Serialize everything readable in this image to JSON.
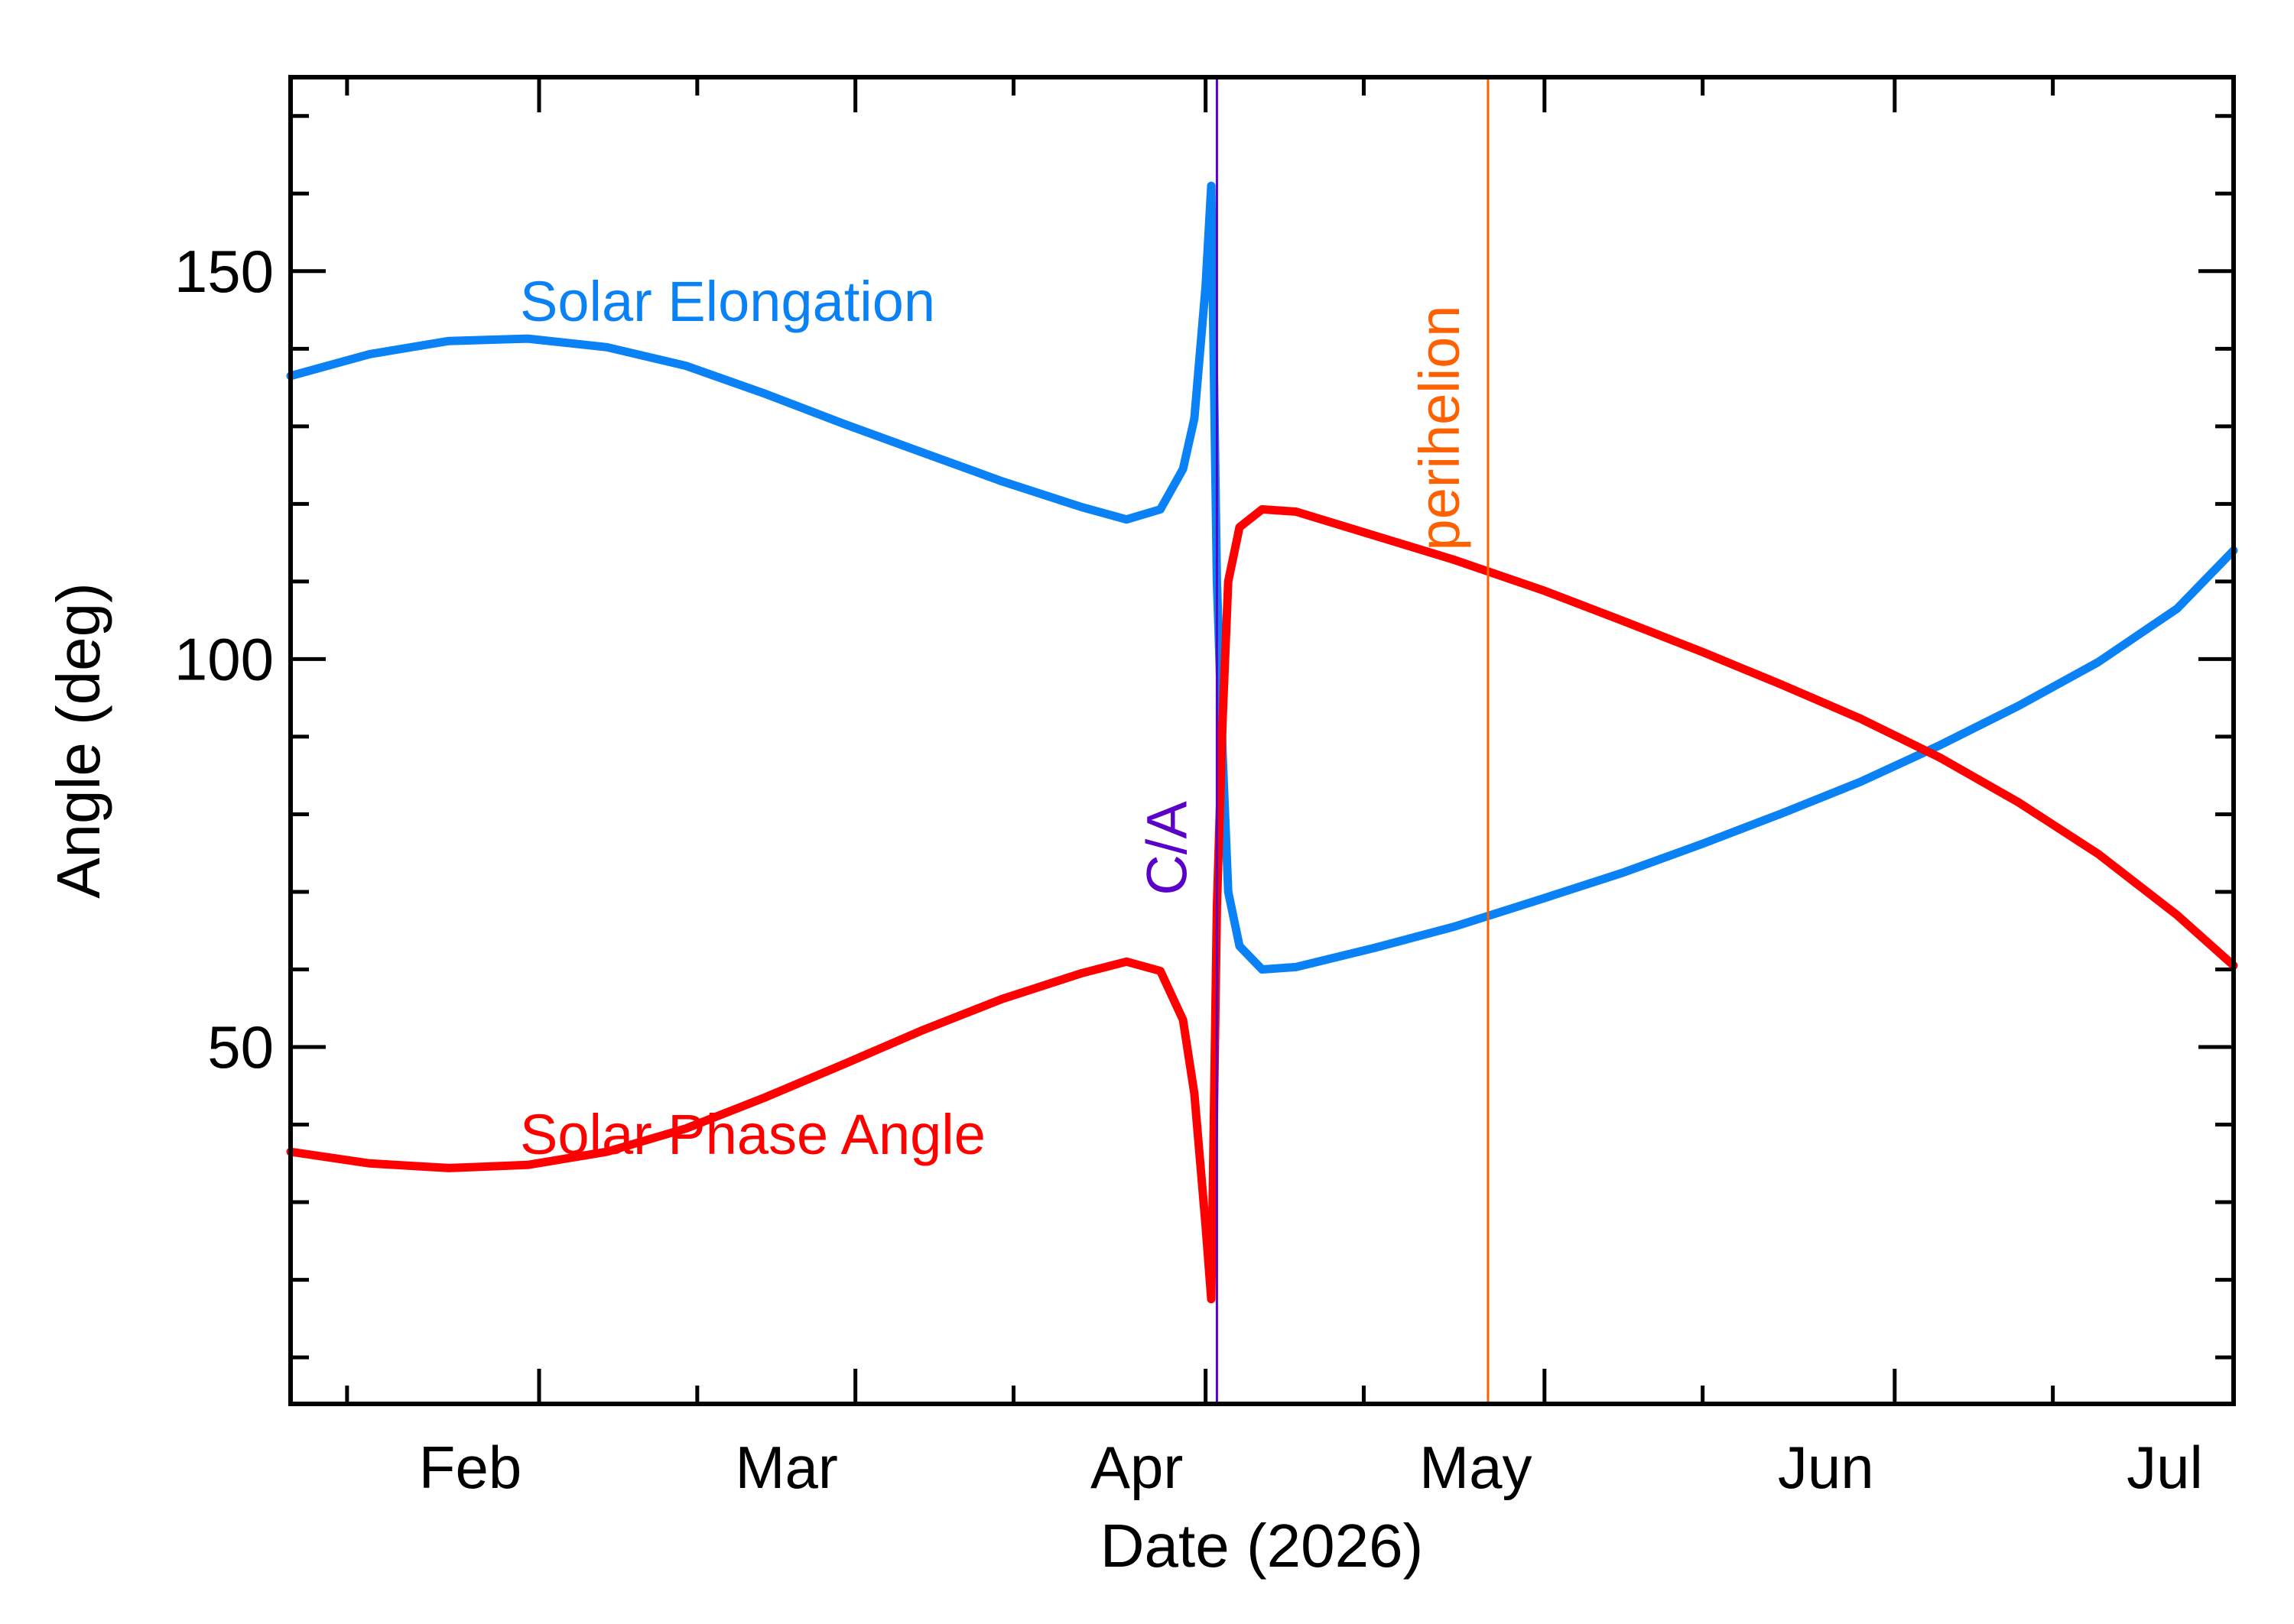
{
  "chart_data": {
    "type": "line",
    "title": "",
    "xlabel": "Date (2026)",
    "ylabel": "Angle (deg)",
    "x_range": [
      "2026-01-10",
      "2026-07-01"
    ],
    "ylim": [
      4,
      175
    ],
    "grid": false,
    "x_ticks": [
      {
        "date": "2026-02-01",
        "label": "Feb"
      },
      {
        "date": "2026-03-01",
        "label": "Mar"
      },
      {
        "date": "2026-04-01",
        "label": "Apr"
      },
      {
        "date": "2026-05-01",
        "label": "May"
      },
      {
        "date": "2026-06-01",
        "label": "Jun"
      },
      {
        "date": "2026-07-01",
        "label": "Jul"
      }
    ],
    "x_minor_ticks": [
      "2026-01-15",
      "2026-02-15",
      "2026-03-15",
      "2026-04-15",
      "2026-05-15",
      "2026-06-15"
    ],
    "y_ticks": [
      {
        "value": 50,
        "label": "50"
      },
      {
        "value": 100,
        "label": "100"
      },
      {
        "value": 150,
        "label": "150"
      }
    ],
    "y_minor_ticks": [
      10,
      20,
      30,
      40,
      60,
      70,
      80,
      90,
      110,
      120,
      130,
      140,
      160,
      170
    ],
    "vlines": [
      {
        "date": "2026-04-02",
        "label": "C/A",
        "color": "#5a00c8"
      },
      {
        "date": "2026-04-26",
        "label": "perihelion",
        "color": "#ff6000"
      }
    ],
    "series": [
      {
        "name": "Solar Elongation",
        "color": "#0a82f5",
        "points": [
          [
            "2026-01-10",
            136.5
          ],
          [
            "2026-01-17",
            139.3
          ],
          [
            "2026-01-24",
            141.0
          ],
          [
            "2026-01-31",
            141.3
          ],
          [
            "2026-02-07",
            140.2
          ],
          [
            "2026-02-14",
            137.8
          ],
          [
            "2026-02-21",
            134.2
          ],
          [
            "2026-02-28",
            130.3
          ],
          [
            "2026-03-07",
            126.6
          ],
          [
            "2026-03-14",
            122.9
          ],
          [
            "2026-03-21",
            119.6
          ],
          [
            "2026-03-25",
            118.0
          ],
          [
            "2026-03-28",
            119.3
          ],
          [
            "2026-03-30",
            124.5
          ],
          [
            "2026-03-31",
            131.0
          ],
          [
            "2026-04-01",
            148.0
          ],
          [
            "2026-04-01T12",
            161.0
          ],
          [
            "2026-04-02",
            110.0
          ],
          [
            "2026-04-02T12",
            88.0
          ],
          [
            "2026-04-03",
            70.0
          ],
          [
            "2026-04-04",
            63.0
          ],
          [
            "2026-04-06",
            60.0
          ],
          [
            "2026-04-09",
            60.3
          ],
          [
            "2026-04-16",
            62.8
          ],
          [
            "2026-04-23",
            65.5
          ],
          [
            "2026-05-01",
            69.2
          ],
          [
            "2026-05-08",
            72.5
          ],
          [
            "2026-05-15",
            76.2
          ],
          [
            "2026-05-22",
            80.1
          ],
          [
            "2026-05-29",
            84.2
          ],
          [
            "2026-06-05",
            88.9
          ],
          [
            "2026-06-12",
            94.0
          ],
          [
            "2026-06-19",
            99.6
          ],
          [
            "2026-06-26",
            106.5
          ],
          [
            "2026-07-01",
            114.0
          ]
        ]
      },
      {
        "name": "Solar Phase Angle",
        "color": "#ff0000",
        "points": [
          [
            "2026-01-10",
            36.5
          ],
          [
            "2026-01-17",
            35.0
          ],
          [
            "2026-01-24",
            34.4
          ],
          [
            "2026-01-31",
            34.8
          ],
          [
            "2026-02-07",
            36.5
          ],
          [
            "2026-02-14",
            39.5
          ],
          [
            "2026-02-21",
            43.5
          ],
          [
            "2026-02-28",
            47.8
          ],
          [
            "2026-03-07",
            52.2
          ],
          [
            "2026-03-14",
            56.2
          ],
          [
            "2026-03-21",
            59.5
          ],
          [
            "2026-03-25",
            61.0
          ],
          [
            "2026-03-28",
            59.8
          ],
          [
            "2026-03-30",
            53.5
          ],
          [
            "2026-03-31",
            44.0
          ],
          [
            "2026-04-01",
            27.0
          ],
          [
            "2026-04-01T12",
            17.5
          ],
          [
            "2026-04-02",
            68.0
          ],
          [
            "2026-04-02T12",
            92.0
          ],
          [
            "2026-04-03",
            110.0
          ],
          [
            "2026-04-04",
            117.0
          ],
          [
            "2026-04-06",
            119.3
          ],
          [
            "2026-04-09",
            119.0
          ],
          [
            "2026-04-16",
            115.9
          ],
          [
            "2026-04-23",
            112.8
          ],
          [
            "2026-05-01",
            108.8
          ],
          [
            "2026-05-08",
            104.9
          ],
          [
            "2026-05-15",
            100.9
          ],
          [
            "2026-05-22",
            96.7
          ],
          [
            "2026-05-29",
            92.3
          ],
          [
            "2026-06-05",
            87.3
          ],
          [
            "2026-06-12",
            81.5
          ],
          [
            "2026-06-19",
            74.9
          ],
          [
            "2026-06-26",
            67.0
          ],
          [
            "2026-07-01",
            60.5
          ]
        ]
      }
    ]
  }
}
